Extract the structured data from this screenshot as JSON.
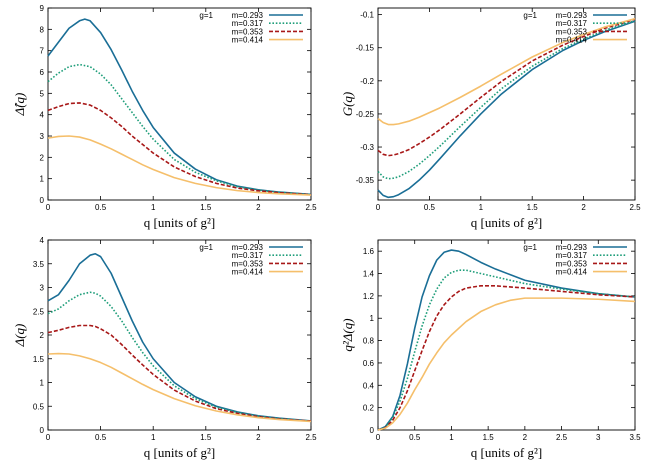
{
  "chart_data": [
    {
      "type": "line",
      "ylabel": "Δ̂(q)",
      "xlabel": "q [units of g²]",
      "xlim": [
        0,
        2.5
      ],
      "ylim": [
        0,
        9
      ],
      "xticks": [
        "0",
        "0.5",
        "1",
        "1.5",
        "2",
        "2.5"
      ],
      "xtick_values": [
        0,
        0.5,
        1,
        1.5,
        2,
        2.5
      ],
      "yticks": [
        "0",
        "1",
        "2",
        "3",
        "4",
        "5",
        "6",
        "7",
        "8",
        "9"
      ],
      "ytick_values": [
        0,
        1,
        2,
        3,
        4,
        5,
        6,
        7,
        8,
        9
      ],
      "legend_title": "g=1",
      "legend_position": "top-right",
      "series": [
        {
          "name": "m=0.293",
          "color": "#1a6e96",
          "dash": "solid",
          "x": [
            0,
            0.1,
            0.2,
            0.3,
            0.35,
            0.4,
            0.5,
            0.6,
            0.7,
            0.8,
            0.9,
            1.0,
            1.2,
            1.4,
            1.6,
            1.8,
            2.0,
            2.2,
            2.5
          ],
          "y": [
            6.75,
            7.4,
            8.05,
            8.4,
            8.48,
            8.4,
            7.85,
            7.05,
            6.1,
            5.1,
            4.2,
            3.4,
            2.2,
            1.45,
            0.95,
            0.65,
            0.48,
            0.37,
            0.26
          ]
        },
        {
          "name": "m=0.317",
          "color": "#1f9e7a",
          "dash": "dot",
          "x": [
            0,
            0.1,
            0.2,
            0.3,
            0.4,
            0.5,
            0.6,
            0.7,
            0.8,
            0.9,
            1.0,
            1.2,
            1.4,
            1.6,
            1.8,
            2.0,
            2.2,
            2.5
          ],
          "y": [
            5.55,
            5.95,
            6.25,
            6.35,
            6.25,
            5.9,
            5.4,
            4.75,
            4.1,
            3.45,
            2.85,
            1.9,
            1.3,
            0.9,
            0.62,
            0.46,
            0.36,
            0.26
          ]
        },
        {
          "name": "m=0.353",
          "color": "#a81818",
          "dash": "dash",
          "x": [
            0,
            0.1,
            0.2,
            0.3,
            0.4,
            0.5,
            0.6,
            0.7,
            0.8,
            0.9,
            1.0,
            1.2,
            1.4,
            1.6,
            1.8,
            2.0,
            2.2,
            2.5
          ],
          "y": [
            4.2,
            4.38,
            4.52,
            4.55,
            4.45,
            4.2,
            3.85,
            3.45,
            3.0,
            2.6,
            2.2,
            1.55,
            1.1,
            0.78,
            0.56,
            0.43,
            0.34,
            0.25
          ]
        },
        {
          "name": "m=0.414",
          "color": "#f5bf6b",
          "dash": "solid",
          "x": [
            0,
            0.1,
            0.2,
            0.3,
            0.4,
            0.5,
            0.6,
            0.7,
            0.8,
            0.9,
            1.0,
            1.2,
            1.4,
            1.6,
            1.8,
            2.0,
            2.2,
            2.5
          ],
          "y": [
            2.9,
            2.98,
            3.0,
            2.95,
            2.82,
            2.62,
            2.4,
            2.15,
            1.9,
            1.65,
            1.43,
            1.05,
            0.78,
            0.58,
            0.44,
            0.35,
            0.29,
            0.23
          ]
        }
      ]
    },
    {
      "type": "line",
      "ylabel": "G(q)",
      "xlabel": "q [units of g²]",
      "xlim": [
        0,
        2.5
      ],
      "ylim": [
        -0.38,
        -0.09
      ],
      "xticks": [
        "0",
        "0.5",
        "1",
        "1.5",
        "2",
        "2.5"
      ],
      "xtick_values": [
        0,
        0.5,
        1,
        1.5,
        2,
        2.5
      ],
      "yticks": [
        "-0.35",
        "-0.3",
        "-0.25",
        "-0.2",
        "-0.15",
        "-0.1"
      ],
      "ytick_values": [
        -0.35,
        -0.3,
        -0.25,
        -0.2,
        -0.15,
        -0.1
      ],
      "legend_title": "g=1",
      "legend_position": "top-right",
      "series": [
        {
          "name": "m=0.293",
          "color": "#1a6e96",
          "dash": "solid",
          "x": [
            0,
            0.05,
            0.1,
            0.15,
            0.2,
            0.3,
            0.4,
            0.5,
            0.6,
            0.8,
            1.0,
            1.2,
            1.5,
            1.8,
            2.0,
            2.2,
            2.5
          ],
          "y": [
            -0.365,
            -0.373,
            -0.376,
            -0.375,
            -0.372,
            -0.363,
            -0.35,
            -0.335,
            -0.318,
            -0.283,
            -0.25,
            -0.22,
            -0.183,
            -0.154,
            -0.139,
            -0.126,
            -0.11
          ]
        },
        {
          "name": "m=0.317",
          "color": "#1f9e7a",
          "dash": "dot",
          "x": [
            0,
            0.05,
            0.1,
            0.15,
            0.2,
            0.3,
            0.4,
            0.5,
            0.6,
            0.8,
            1.0,
            1.2,
            1.5,
            1.8,
            2.0,
            2.2,
            2.5
          ],
          "y": [
            -0.337,
            -0.345,
            -0.348,
            -0.347,
            -0.345,
            -0.337,
            -0.326,
            -0.313,
            -0.299,
            -0.269,
            -0.24,
            -0.212,
            -0.178,
            -0.151,
            -0.137,
            -0.124,
            -0.109
          ]
        },
        {
          "name": "m=0.353",
          "color": "#a81818",
          "dash": "dash",
          "x": [
            0,
            0.05,
            0.1,
            0.15,
            0.2,
            0.3,
            0.4,
            0.5,
            0.6,
            0.8,
            1.0,
            1.2,
            1.5,
            1.8,
            2.0,
            2.2,
            2.5
          ],
          "y": [
            -0.305,
            -0.311,
            -0.313,
            -0.312,
            -0.31,
            -0.304,
            -0.295,
            -0.285,
            -0.274,
            -0.25,
            -0.225,
            -0.201,
            -0.17,
            -0.146,
            -0.133,
            -0.121,
            -0.107
          ]
        },
        {
          "name": "m=0.414",
          "color": "#f5bf6b",
          "dash": "solid",
          "x": [
            0,
            0.05,
            0.1,
            0.15,
            0.2,
            0.3,
            0.4,
            0.5,
            0.6,
            0.8,
            1.0,
            1.2,
            1.5,
            1.8,
            2.0,
            2.2,
            2.5
          ],
          "y": [
            -0.257,
            -0.263,
            -0.266,
            -0.266,
            -0.265,
            -0.261,
            -0.255,
            -0.248,
            -0.241,
            -0.225,
            -0.208,
            -0.19,
            -0.164,
            -0.142,
            -0.13,
            -0.119,
            -0.106
          ]
        }
      ]
    },
    {
      "type": "line",
      "ylabel": "Δ(q)",
      "xlabel": "q [units of g²]",
      "xlim": [
        0,
        2.5
      ],
      "ylim": [
        0,
        4
      ],
      "xticks": [
        "0",
        "0.5",
        "1",
        "1.5",
        "2",
        "2.5"
      ],
      "xtick_values": [
        0,
        0.5,
        1,
        1.5,
        2,
        2.5
      ],
      "yticks": [
        "0",
        "0.5",
        "1",
        "1.5",
        "2",
        "2.5",
        "3",
        "3.5",
        "4"
      ],
      "ytick_values": [
        0,
        0.5,
        1,
        1.5,
        2,
        2.5,
        3,
        3.5,
        4
      ],
      "legend_title": "g=1",
      "legend_position": "top-right",
      "series": [
        {
          "name": "m=0.293",
          "color": "#1a6e96",
          "dash": "solid",
          "x": [
            0,
            0.1,
            0.2,
            0.3,
            0.4,
            0.45,
            0.5,
            0.6,
            0.7,
            0.8,
            0.9,
            1.0,
            1.2,
            1.4,
            1.6,
            1.8,
            2.0,
            2.2,
            2.5
          ],
          "y": [
            2.72,
            2.85,
            3.15,
            3.5,
            3.68,
            3.71,
            3.65,
            3.3,
            2.8,
            2.3,
            1.85,
            1.5,
            1.0,
            0.7,
            0.5,
            0.38,
            0.3,
            0.25,
            0.19
          ]
        },
        {
          "name": "m=0.317",
          "color": "#1f9e7a",
          "dash": "dot",
          "x": [
            0,
            0.1,
            0.2,
            0.3,
            0.4,
            0.45,
            0.5,
            0.6,
            0.7,
            0.8,
            0.9,
            1.0,
            1.2,
            1.4,
            1.6,
            1.8,
            2.0,
            2.2,
            2.5
          ],
          "y": [
            2.45,
            2.55,
            2.72,
            2.85,
            2.9,
            2.88,
            2.82,
            2.6,
            2.3,
            1.95,
            1.63,
            1.35,
            0.93,
            0.66,
            0.48,
            0.37,
            0.29,
            0.24,
            0.19
          ]
        },
        {
          "name": "m=0.353",
          "color": "#a81818",
          "dash": "dash",
          "x": [
            0,
            0.1,
            0.2,
            0.3,
            0.4,
            0.45,
            0.5,
            0.6,
            0.7,
            0.8,
            0.9,
            1.0,
            1.2,
            1.4,
            1.6,
            1.8,
            2.0,
            2.2,
            2.5
          ],
          "y": [
            2.05,
            2.1,
            2.16,
            2.2,
            2.2,
            2.18,
            2.13,
            2.0,
            1.8,
            1.58,
            1.37,
            1.17,
            0.84,
            0.61,
            0.45,
            0.35,
            0.28,
            0.23,
            0.19
          ]
        },
        {
          "name": "m=0.414",
          "color": "#f5bf6b",
          "dash": "solid",
          "x": [
            0,
            0.1,
            0.2,
            0.3,
            0.4,
            0.45,
            0.5,
            0.6,
            0.7,
            0.8,
            0.9,
            1.0,
            1.2,
            1.4,
            1.6,
            1.8,
            2.0,
            2.2,
            2.5
          ],
          "y": [
            1.6,
            1.61,
            1.6,
            1.56,
            1.5,
            1.46,
            1.42,
            1.32,
            1.2,
            1.08,
            0.96,
            0.85,
            0.66,
            0.51,
            0.4,
            0.32,
            0.26,
            0.22,
            0.18
          ]
        }
      ]
    },
    {
      "type": "line",
      "ylabel": "q²Δ(q)",
      "xlabel": "q [units of g²]",
      "xlim": [
        0,
        3.5
      ],
      "ylim": [
        0,
        1.7
      ],
      "xticks": [
        "0",
        "0.5",
        "1",
        "1.5",
        "2",
        "2.5",
        "3",
        "3.5"
      ],
      "xtick_values": [
        0,
        0.5,
        1,
        1.5,
        2,
        2.5,
        3,
        3.5
      ],
      "yticks": [
        "0",
        "0.2",
        "0.4",
        "0.6",
        "0.8",
        "1",
        "1.2",
        "1.4",
        "1.6"
      ],
      "ytick_values": [
        0,
        0.2,
        0.4,
        0.6,
        0.8,
        1,
        1.2,
        1.4,
        1.6
      ],
      "legend_title": "g=1",
      "legend_position": "top-right",
      "series": [
        {
          "name": "m=0.293",
          "color": "#1a6e96",
          "dash": "solid",
          "x": [
            0,
            0.1,
            0.2,
            0.3,
            0.4,
            0.5,
            0.6,
            0.7,
            0.8,
            0.9,
            1.0,
            1.1,
            1.2,
            1.4,
            1.6,
            1.8,
            2.0,
            2.5,
            3.0,
            3.5
          ],
          "y": [
            0,
            0.03,
            0.12,
            0.31,
            0.59,
            0.91,
            1.19,
            1.38,
            1.52,
            1.59,
            1.61,
            1.6,
            1.57,
            1.5,
            1.44,
            1.39,
            1.34,
            1.27,
            1.22,
            1.19
          ]
        },
        {
          "name": "m=0.317",
          "color": "#1f9e7a",
          "dash": "dot",
          "x": [
            0,
            0.1,
            0.2,
            0.3,
            0.4,
            0.5,
            0.6,
            0.7,
            0.8,
            0.9,
            1.0,
            1.1,
            1.2,
            1.4,
            1.6,
            1.8,
            2.0,
            2.5,
            3.0,
            3.5
          ],
          "y": [
            0,
            0.025,
            0.11,
            0.26,
            0.46,
            0.7,
            0.93,
            1.12,
            1.26,
            1.36,
            1.41,
            1.43,
            1.43,
            1.4,
            1.37,
            1.34,
            1.31,
            1.26,
            1.22,
            1.19
          ]
        },
        {
          "name": "m=0.353",
          "color": "#a81818",
          "dash": "dash",
          "x": [
            0,
            0.1,
            0.2,
            0.3,
            0.4,
            0.5,
            0.6,
            0.7,
            0.8,
            0.9,
            1.0,
            1.1,
            1.2,
            1.4,
            1.6,
            1.8,
            2.0,
            2.5,
            3.0,
            3.5
          ],
          "y": [
            0,
            0.02,
            0.087,
            0.2,
            0.35,
            0.53,
            0.71,
            0.88,
            1.02,
            1.12,
            1.19,
            1.24,
            1.27,
            1.29,
            1.29,
            1.28,
            1.27,
            1.24,
            1.21,
            1.19
          ]
        },
        {
          "name": "m=0.414",
          "color": "#f5bf6b",
          "dash": "solid",
          "x": [
            0,
            0.1,
            0.2,
            0.3,
            0.4,
            0.5,
            0.6,
            0.7,
            0.8,
            0.9,
            1.0,
            1.2,
            1.4,
            1.6,
            1.8,
            2.0,
            2.2,
            2.5,
            3.0,
            3.5
          ],
          "y": [
            0,
            0.016,
            0.064,
            0.14,
            0.24,
            0.36,
            0.47,
            0.59,
            0.69,
            0.78,
            0.85,
            0.97,
            1.06,
            1.12,
            1.16,
            1.18,
            1.18,
            1.18,
            1.17,
            1.15
          ]
        }
      ]
    }
  ]
}
